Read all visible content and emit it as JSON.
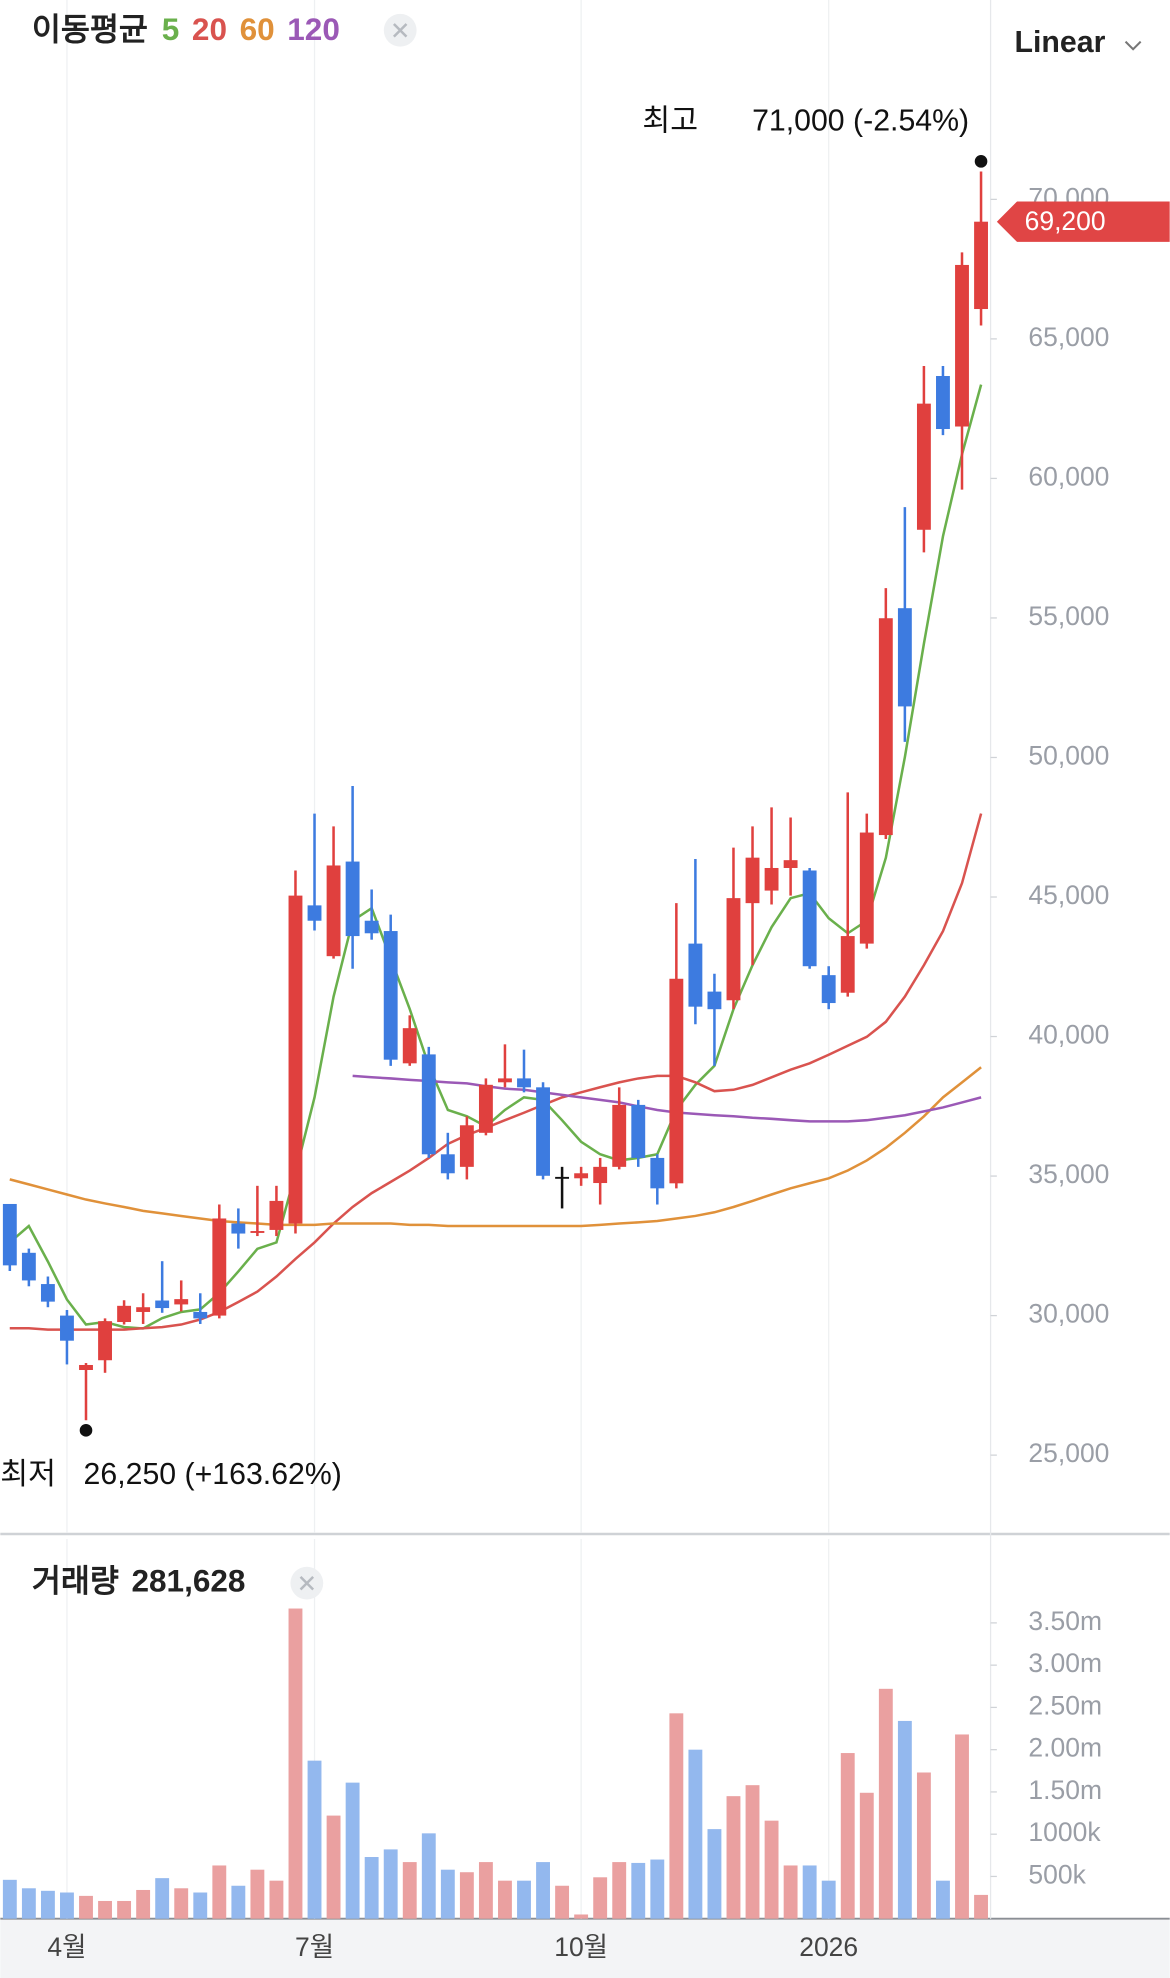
{
  "chart_data": [
    {
      "type": "candlestick",
      "legend_title": "이동평균",
      "scale": "Linear",
      "categories": [
        null,
        null,
        null,
        "4월",
        null,
        null,
        null,
        null,
        null,
        null,
        null,
        null,
        null,
        null,
        null,
        null,
        "7월",
        null,
        null,
        null,
        null,
        null,
        null,
        null,
        null,
        null,
        null,
        null,
        null,
        null,
        "10월",
        null,
        null,
        null,
        null,
        null,
        null,
        null,
        null,
        null,
        null,
        null,
        null,
        "2026",
        null,
        null,
        null,
        null,
        null,
        null,
        null,
        null
      ],
      "open": [
        34000,
        32250,
        31130,
        30000,
        28050,
        28400,
        29770,
        30130,
        30540,
        30400,
        30130,
        30000,
        33300,
        32970,
        33070,
        33300,
        44700,
        42880,
        46270,
        44150,
        43780,
        39040,
        39360,
        35780,
        35330,
        36550,
        38360,
        38500,
        38180,
        34970,
        34920,
        34750,
        35330,
        37550,
        35650,
        34740,
        43330,
        41610,
        41300,
        44780,
        45230,
        46040,
        45950,
        42200,
        41570,
        43330,
        47220,
        55350,
        58160,
        63670,
        61860,
        66070
      ],
      "high": [
        34000,
        32400,
        31400,
        30200,
        28300,
        29900,
        30550,
        30800,
        31950,
        31260,
        30800,
        33980,
        33840,
        34650,
        34650,
        45950,
        47990,
        47530,
        48980,
        45270,
        44370,
        40760,
        39630,
        36550,
        37140,
        38500,
        39720,
        39530,
        38360,
        35330,
        35330,
        35650,
        38180,
        37730,
        35780,
        44780,
        46360,
        42250,
        46770,
        47530,
        48210,
        47850,
        46040,
        42520,
        48750,
        47990,
        56070,
        58970,
        64030,
        64030,
        68100,
        71000
      ],
      "low": [
        31600,
        31050,
        30300,
        28250,
        26250,
        27950,
        29680,
        29700,
        30100,
        30150,
        29700,
        29900,
        32400,
        32850,
        32850,
        32940,
        43800,
        42790,
        42430,
        43470,
        38950,
        38950,
        35650,
        34880,
        34880,
        36460,
        38180,
        38000,
        34880,
        33840,
        34650,
        33980,
        35240,
        35330,
        33980,
        34560,
        40440,
        38950,
        40980,
        42560,
        44730,
        45050,
        42430,
        40980,
        41430,
        43150,
        47080,
        50560,
        57350,
        61550,
        59600,
        65480
      ],
      "close": [
        31800,
        31260,
        30500,
        29100,
        28230,
        29800,
        30350,
        30300,
        30270,
        30590,
        29900,
        33480,
        32940,
        33030,
        34110,
        45050,
        44150,
        46130,
        43600,
        43700,
        39170,
        40300,
        35780,
        35100,
        36820,
        38270,
        38500,
        38180,
        35010,
        34970,
        35100,
        35330,
        37550,
        35650,
        34560,
        42070,
        41070,
        40980,
        44960,
        46410,
        46040,
        46320,
        42520,
        41200,
        43600,
        47310,
        54990,
        51830,
        62680,
        61770,
        67650,
        69200
      ],
      "up_color": "#e0403e",
      "down_color": "#3d7be0",
      "flat_color": "#111111",
      "series": [
        {
          "name": "5",
          "color": "#6ab04c",
          "values": [
            32620,
            33210,
            31940,
            30580,
            29680,
            29770,
            29590,
            29540,
            29910,
            30130,
            30220,
            30810,
            31580,
            32390,
            32620,
            35110,
            37820,
            41430,
            44150,
            44600,
            42790,
            40980,
            38950,
            37370,
            37140,
            36780,
            37370,
            37820,
            37730,
            37000,
            36230,
            35780,
            35560,
            35650,
            35780,
            37370,
            38270,
            38950,
            40980,
            42560,
            43920,
            44960,
            45140,
            44240,
            43700,
            44150,
            46410,
            50020,
            54090,
            57930,
            60870,
            63360
          ]
        },
        {
          "name": "20",
          "color": "#d9534f",
          "values": [
            29550,
            29550,
            29500,
            29500,
            29500,
            29500,
            29500,
            29550,
            29590,
            29680,
            29860,
            30130,
            30490,
            30860,
            31400,
            32030,
            32620,
            33300,
            33890,
            34390,
            34790,
            35200,
            35650,
            36150,
            36470,
            36730,
            37000,
            37270,
            37550,
            37820,
            38000,
            38180,
            38360,
            38500,
            38590,
            38590,
            38360,
            38040,
            38090,
            38270,
            38540,
            38810,
            39040,
            39350,
            39670,
            39990,
            40530,
            41430,
            42560,
            43780,
            45500,
            47990
          ]
        },
        {
          "name": "60",
          "color": "#e0913a",
          "values": [
            34880,
            34700,
            34520,
            34340,
            34160,
            34020,
            33890,
            33750,
            33660,
            33570,
            33480,
            33390,
            33340,
            33300,
            33250,
            33250,
            33250,
            33300,
            33300,
            33300,
            33300,
            33250,
            33250,
            33210,
            33210,
            33210,
            33210,
            33210,
            33210,
            33210,
            33210,
            33250,
            33300,
            33340,
            33390,
            33480,
            33570,
            33700,
            33890,
            34110,
            34340,
            34560,
            34740,
            34920,
            35200,
            35560,
            36010,
            36550,
            37140,
            37820,
            38360,
            38900
          ]
        },
        {
          "name": "120",
          "color": "#9b59b6",
          "values": [
            null,
            null,
            null,
            null,
            null,
            null,
            null,
            null,
            null,
            null,
            null,
            null,
            null,
            null,
            null,
            null,
            null,
            null,
            38590,
            38540,
            38500,
            38450,
            38410,
            38360,
            38320,
            38220,
            38130,
            38090,
            38000,
            37910,
            37820,
            37730,
            37640,
            37500,
            37370,
            37280,
            37230,
            37180,
            37140,
            37090,
            37050,
            37000,
            36960,
            36960,
            36960,
            37000,
            37090,
            37180,
            37320,
            37460,
            37640,
            37820
          ]
        }
      ],
      "ylim": [
        22220,
        75110
      ],
      "yticks": [
        {
          "value": 25000,
          "label": "25,000"
        },
        {
          "value": 30000,
          "label": "30,000"
        },
        {
          "value": 35000,
          "label": "35,000"
        },
        {
          "value": 40000,
          "label": "40,000"
        },
        {
          "value": 45000,
          "label": "45,000"
        },
        {
          "value": 50000,
          "label": "50,000"
        },
        {
          "value": 55000,
          "label": "55,000"
        },
        {
          "value": 60000,
          "label": "60,000"
        },
        {
          "value": 65000,
          "label": "65,000"
        },
        {
          "value": 70000,
          "label": "70,000"
        }
      ],
      "last_price": {
        "value": 69200,
        "label": "69,200"
      },
      "high_marker": {
        "label": "최고",
        "text": "71,000 (-2.54%)",
        "value": 71000
      },
      "low_marker": {
        "label": "최저",
        "text": "26,250 (+163.62%)",
        "value": 26250
      }
    },
    {
      "type": "bar",
      "title": "거래량",
      "latest": {
        "value": 281628,
        "label": "281,628"
      },
      "values": [
        460000,
        360000,
        330000,
        310000,
        270000,
        210000,
        210000,
        340000,
        480000,
        360000,
        310000,
        630000,
        390000,
        580000,
        450000,
        3670000,
        1870000,
        1220000,
        1610000,
        730000,
        820000,
        670000,
        1010000,
        580000,
        550000,
        670000,
        450000,
        450000,
        670000,
        390000,
        50000,
        490000,
        670000,
        660000,
        700000,
        2430000,
        2000000,
        1060000,
        1450000,
        1580000,
        1160000,
        630000,
        630000,
        450000,
        1960000,
        1490000,
        2720000,
        2340000,
        1730000,
        450000,
        2180000,
        281628
      ],
      "up_color": "#eaa0a0",
      "down_color": "#93b8ee",
      "ylim": [
        0,
        3800000
      ],
      "yticks": [
        {
          "value": 500000,
          "label": "500k"
        },
        {
          "value": 1000000,
          "label": "1000k"
        },
        {
          "value": 1500000,
          "label": "1.50m"
        },
        {
          "value": 2000000,
          "label": "2.00m"
        },
        {
          "value": 2500000,
          "label": "2.50m"
        },
        {
          "value": 3000000,
          "label": "3.00m"
        },
        {
          "value": 3500000,
          "label": "3.50m"
        }
      ]
    }
  ]
}
